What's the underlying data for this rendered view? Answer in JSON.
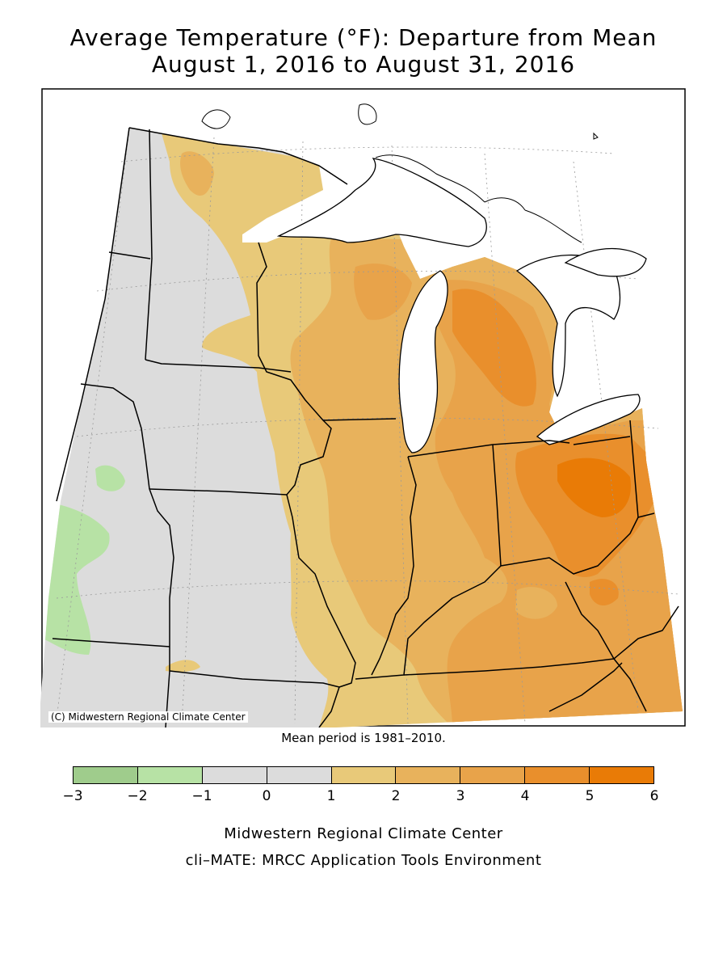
{
  "title_line1": "Average Temperature (°F): Departure from Mean",
  "title_line2": "August 1, 2016 to August 31, 2016",
  "copyright": "(C) Midwestern Regional Climate Center",
  "mean_period": "Mean period is 1981–2010.",
  "legend": {
    "bins": [
      {
        "from": -3,
        "to": -2,
        "color": "#9fcc8c"
      },
      {
        "from": -2,
        "to": -1,
        "color": "#b7e2a5"
      },
      {
        "from": -1,
        "to": 0,
        "color": "#dcdcdc"
      },
      {
        "from": 0,
        "to": 1,
        "color": "#dcdcdc"
      },
      {
        "from": 1,
        "to": 2,
        "color": "#e8c979"
      },
      {
        "from": 2,
        "to": 3,
        "color": "#e8b25c"
      },
      {
        "from": 3,
        "to": 4,
        "color": "#e8a34a"
      },
      {
        "from": 4,
        "to": 5,
        "color": "#e98f2c"
      },
      {
        "from": 5,
        "to": 6,
        "color": "#e97b06"
      }
    ],
    "tick_labels": [
      "−3",
      "−2",
      "−1",
      "0",
      "1",
      "2",
      "3",
      "4",
      "5",
      "6"
    ]
  },
  "credit_line1": "Midwestern Regional Climate Center",
  "credit_line2": "cli–MATE: MRCC Application Tools Environment"
}
